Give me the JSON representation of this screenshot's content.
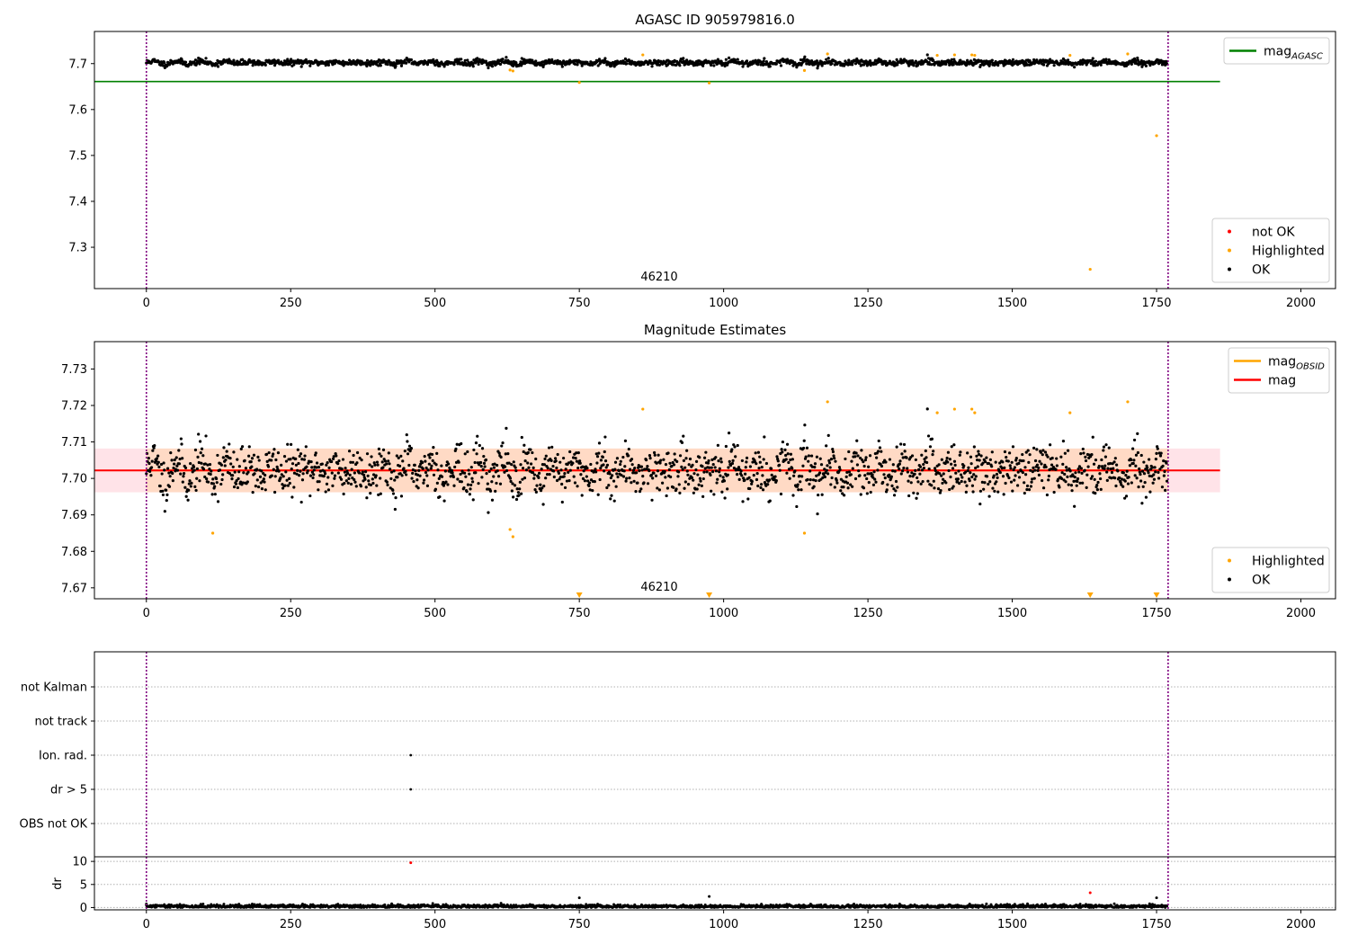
{
  "chart_data": [
    {
      "type": "scatter",
      "title": "AGASC ID 905979816.0",
      "xlim": [
        -90,
        2060
      ],
      "ylim": [
        7.21,
        7.77
      ],
      "xticks": [
        0,
        250,
        500,
        750,
        1000,
        1250,
        1500,
        1750,
        2000
      ],
      "yticks": [
        7.3,
        7.4,
        7.5,
        7.6,
        7.7
      ],
      "ytick_labels": [
        "7.3",
        "7.4",
        "7.5",
        "7.6",
        "7.7"
      ],
      "grid": false,
      "obsid_label": {
        "text": "46210",
        "x": 885
      },
      "vlines": {
        "x": [
          0,
          1770
        ],
        "color": "#800080",
        "style": "dotted"
      },
      "hline": {
        "name": "mag_AGASC",
        "y": 7.661,
        "x_range": [
          -90,
          1860
        ],
        "color": "#008000"
      },
      "series": [
        {
          "name": "not OK",
          "color": "#ff0000",
          "points": []
        },
        {
          "name": "Highlighted",
          "color": "#ffa500",
          "points": [
            [
              630,
              7.686
            ],
            [
              635,
              7.684
            ],
            [
              750,
              7.659
            ],
            [
              860,
              7.719
            ],
            [
              975,
              7.658
            ],
            [
              1140,
              7.685
            ],
            [
              1180,
              7.721
            ],
            [
              1370,
              7.718
            ],
            [
              1400,
              7.719
            ],
            [
              1430,
              7.719
            ],
            [
              1435,
              7.718
            ],
            [
              1600,
              7.718
            ],
            [
              1635,
              7.252
            ],
            [
              1700,
              7.721
            ],
            [
              1750,
              7.543
            ]
          ]
        },
        {
          "name": "OK",
          "color": "#000000",
          "generated": {
            "n": 1765,
            "x_range": [
              0,
              1768
            ],
            "mean": 7.7022,
            "noise": 0.0032,
            "wave_amp": 0.0032,
            "wave_period": 42
          }
        }
      ],
      "legends": [
        {
          "position": "upper right",
          "entries": [
            {
              "label": "mag",
              "sub": "AGASC",
              "kind": "line",
              "color": "#008000"
            }
          ]
        },
        {
          "position": "lower right",
          "entries": [
            {
              "label": "not OK",
              "kind": "dot",
              "color": "#ff0000"
            },
            {
              "label": "Highlighted",
              "kind": "dot",
              "color": "#ffa500"
            },
            {
              "label": "OK",
              "kind": "dot",
              "color": "#000000"
            }
          ]
        }
      ]
    },
    {
      "type": "scatter",
      "title": "Magnitude Estimates",
      "xlim": [
        -90,
        2060
      ],
      "ylim": [
        7.667,
        7.7375
      ],
      "xticks": [
        0,
        250,
        500,
        750,
        1000,
        1250,
        1500,
        1750,
        2000
      ],
      "yticks": [
        7.67,
        7.68,
        7.69,
        7.7,
        7.71,
        7.72,
        7.73
      ],
      "ytick_labels": [
        "7.67",
        "7.68",
        "7.69",
        "7.70",
        "7.71",
        "7.72",
        "7.73"
      ],
      "grid": false,
      "obsid_label": {
        "text": "46210",
        "x": 885
      },
      "vlines": {
        "x": [
          0,
          1770
        ],
        "color": "#800080",
        "style": "dotted"
      },
      "bands": [
        {
          "name": "mag",
          "y_range": [
            7.6962,
            7.7082
          ],
          "x_range": [
            -90,
            1860
          ],
          "color": "#ffc0cb",
          "opacity": 0.45
        },
        {
          "name": "mag_OBSID",
          "y_range": [
            7.6962,
            7.7082
          ],
          "x_range": [
            0,
            1770
          ],
          "color": "#ffa500",
          "opacity": 0.15
        }
      ],
      "lines": [
        {
          "name": "mag_OBSID",
          "y": 7.7022,
          "x_range": [
            0,
            1770
          ],
          "color": "#ffa500"
        },
        {
          "name": "mag",
          "y": 7.7022,
          "x_range": [
            -90,
            1860
          ],
          "color": "#ff0000"
        }
      ],
      "series": [
        {
          "name": "Highlighted",
          "color": "#ffa500",
          "points": [
            [
              115,
              7.685
            ],
            [
              630,
              7.686
            ],
            [
              635,
              7.684
            ],
            [
              860,
              7.719
            ],
            [
              1140,
              7.685
            ],
            [
              1180,
              7.721
            ],
            [
              1370,
              7.718
            ],
            [
              1400,
              7.719
            ],
            [
              1430,
              7.719
            ],
            [
              1435,
              7.718
            ],
            [
              1600,
              7.718
            ],
            [
              1700,
              7.721
            ]
          ]
        },
        {
          "name": "Highlighted (below axis)",
          "color": "#ffa500",
          "marker": "triangle-down",
          "points": [
            [
              750,
              7.668
            ],
            [
              975,
              7.668
            ],
            [
              1635,
              7.668
            ],
            [
              1750,
              7.668
            ]
          ]
        },
        {
          "name": "OK",
          "color": "#000000",
          "generated": {
            "n": 1765,
            "x_range": [
              0,
              1768
            ],
            "mean": 7.7022,
            "noise": 0.0032,
            "wave_amp": 0.0032,
            "wave_period": 42
          }
        }
      ],
      "legends": [
        {
          "position": "upper right",
          "entries": [
            {
              "label": "mag",
              "sub": "OBSID",
              "kind": "line",
              "color": "#ffa500"
            },
            {
              "label": "mag",
              "kind": "line",
              "color": "#ff0000"
            }
          ]
        },
        {
          "position": "lower right",
          "entries": [
            {
              "label": "Highlighted",
              "kind": "dot",
              "color": "#ffa500"
            },
            {
              "label": "OK",
              "kind": "dot",
              "color": "#000000"
            }
          ]
        }
      ]
    },
    {
      "type": "scatter",
      "title": "",
      "xlim": [
        -90,
        2060
      ],
      "categories": [
        "not Kalman",
        "not track",
        "Ion. rad.",
        "dr > 5",
        "OBS not OK"
      ],
      "grid": true,
      "vlines": {
        "x": [
          0,
          1770
        ],
        "color": "#800080",
        "style": "dotted"
      },
      "series": [
        {
          "name": "Ion. rad.",
          "color": "#000000",
          "points": [
            [
              458,
              "Ion. rad."
            ]
          ]
        },
        {
          "name": "dr > 5",
          "color": "#000000",
          "points": [
            [
              458,
              "dr > 5"
            ]
          ]
        }
      ]
    },
    {
      "type": "scatter",
      "title": "",
      "ylabel": "dr",
      "xlim": [
        -90,
        2060
      ],
      "ylim": [
        -0.5,
        11.0
      ],
      "xticks": [
        0,
        250,
        500,
        750,
        1000,
        1250,
        1500,
        1750,
        2000
      ],
      "yticks": [
        0,
        5,
        10
      ],
      "ytick_labels": [
        "0",
        "5",
        "10"
      ],
      "grid": true,
      "vlines": {
        "x": [
          0,
          1770
        ],
        "color": "#800080",
        "style": "dotted"
      },
      "series": [
        {
          "name": "OK",
          "color": "#000000",
          "points": [
            [
              750,
              2.1
            ],
            [
              975,
              2.4
            ],
            [
              1750,
              2.1
            ],
            [
              0,
              0.8
            ]
          ],
          "generated": {
            "n": 1765,
            "x_range": [
              0,
              1768
            ],
            "mean": 0.25,
            "noise": 0.2
          }
        },
        {
          "name": "not OK",
          "color": "#ff0000",
          "points": [
            [
              458,
              9.7
            ],
            [
              1635,
              3.2
            ]
          ]
        }
      ]
    }
  ]
}
